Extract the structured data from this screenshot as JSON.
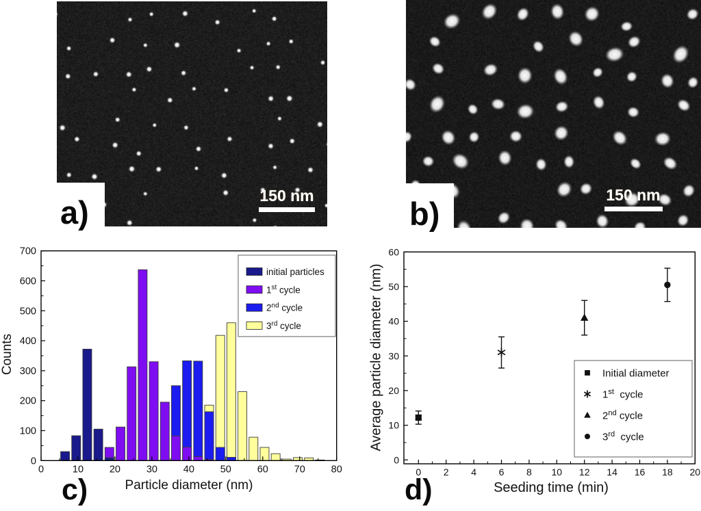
{
  "figure": {
    "panel_a": {
      "label": "a)",
      "scale_bar_text": "150 nm",
      "sem": {
        "style": "dots",
        "seed": 11,
        "spacing": 46,
        "rmin": 1.8,
        "rmax": 2.7,
        "drop": 0.2,
        "bg_base": 16,
        "bg_noise": 26
      }
    },
    "panel_b": {
      "label": "b)",
      "scale_bar_text": "150 nm",
      "sem": {
        "style": "blobs",
        "seed": 83,
        "spacing": 52,
        "rmin": 5.5,
        "rmax": 8.5,
        "drop": 0.15,
        "bg_base": 14,
        "bg_noise": 24
      }
    },
    "panel_c": {
      "letter": "c)"
    },
    "panel_d": {
      "letter": "d)"
    }
  },
  "chart_data": [
    {
      "panel": "c",
      "type": "bar",
      "title": "",
      "xlabel": "Particle diameter (nm)",
      "ylabel": "Counts",
      "xlim": [
        0,
        80
      ],
      "ylim": [
        0,
        700
      ],
      "x_ticks": [
        0,
        10,
        20,
        30,
        40,
        50,
        60,
        70,
        80
      ],
      "x_minor_ticks": [
        5,
        15,
        25,
        35,
        45,
        55,
        65,
        75
      ],
      "y_ticks": [
        0,
        100,
        200,
        300,
        400,
        500,
        600,
        700
      ],
      "y_minor_ticks": [
        50,
        150,
        250,
        350,
        450,
        550,
        650
      ],
      "bin_width": 3,
      "grid": false,
      "legend_position": "top-right",
      "series": [
        {
          "name": "initial particles",
          "label_parts": {
            "t": "initial particles",
            "sup": "",
            "r": ""
          },
          "color": "#1A1A8C",
          "bins_start": [
            5,
            8,
            11,
            14,
            17
          ],
          "values": [
            30,
            83,
            372,
            105,
            10
          ]
        },
        {
          "name": "1st cycle",
          "label_parts": {
            "t": "1",
            "sup": "st",
            "r": " cycle"
          },
          "color": "#7F0DF2",
          "bins_start": [
            17,
            20,
            23,
            26,
            29,
            32,
            35,
            38,
            41,
            44
          ],
          "values": [
            44,
            112,
            313,
            637,
            330,
            195,
            82,
            45,
            13,
            4
          ]
        },
        {
          "name": "2nd cycle",
          "label_parts": {
            "t": "2",
            "sup": "nd",
            "r": " cycle"
          },
          "color": "#1C1CF0",
          "bins_start": [
            35,
            38,
            41,
            44,
            47,
            50
          ],
          "values": [
            250,
            333,
            332,
            163,
            44,
            11
          ]
        },
        {
          "name": "3rd cycle",
          "label_parts": {
            "t": "3",
            "sup": "rd",
            "r": " cycle"
          },
          "color": "#FFFF9C",
          "bins_start": [
            44,
            47,
            50,
            53,
            56,
            59,
            62,
            65,
            68,
            71,
            74
          ],
          "values": [
            185,
            418,
            460,
            230,
            78,
            44,
            23,
            5,
            10,
            9,
            2
          ]
        }
      ]
    },
    {
      "panel": "d",
      "type": "scatter",
      "title": "",
      "xlabel": "Seeding time (min)",
      "ylabel": "Average particle diameter (nm)",
      "xlim": [
        -1.1,
        20
      ],
      "ylim": [
        0,
        60
      ],
      "x_ticks": [
        0,
        2,
        4,
        6,
        8,
        10,
        12,
        14,
        16,
        18,
        20
      ],
      "x_minor_ticks": [
        1,
        3,
        5,
        7,
        9,
        11,
        13,
        15,
        17,
        19
      ],
      "y_ticks": [
        0,
        10,
        20,
        30,
        40,
        50,
        60
      ],
      "y_minor_ticks": [
        5,
        15,
        25,
        35,
        45,
        55
      ],
      "grid": false,
      "legend_position": "bottom-right",
      "marker_color": "#111111",
      "points": [
        {
          "marker": "square",
          "x": 0,
          "y": 12.2,
          "err": 1.9,
          "label_parts": {
            "t": "Initial diameter",
            "sup": "",
            "r": ""
          }
        },
        {
          "marker": "asterisk",
          "x": 6,
          "y": 31.0,
          "err": 4.5,
          "label_parts": {
            "t": "1",
            "sup": "st",
            "r": "  cycle"
          }
        },
        {
          "marker": "triangle",
          "x": 12,
          "y": 41.0,
          "err": 5.0,
          "label_parts": {
            "t": "2",
            "sup": "nd",
            "r": " cycle"
          }
        },
        {
          "marker": "circle",
          "x": 18,
          "y": 50.5,
          "err": 4.8,
          "label_parts": {
            "t": "3",
            "sup": "rd",
            "r": "  cycle"
          }
        }
      ]
    }
  ]
}
